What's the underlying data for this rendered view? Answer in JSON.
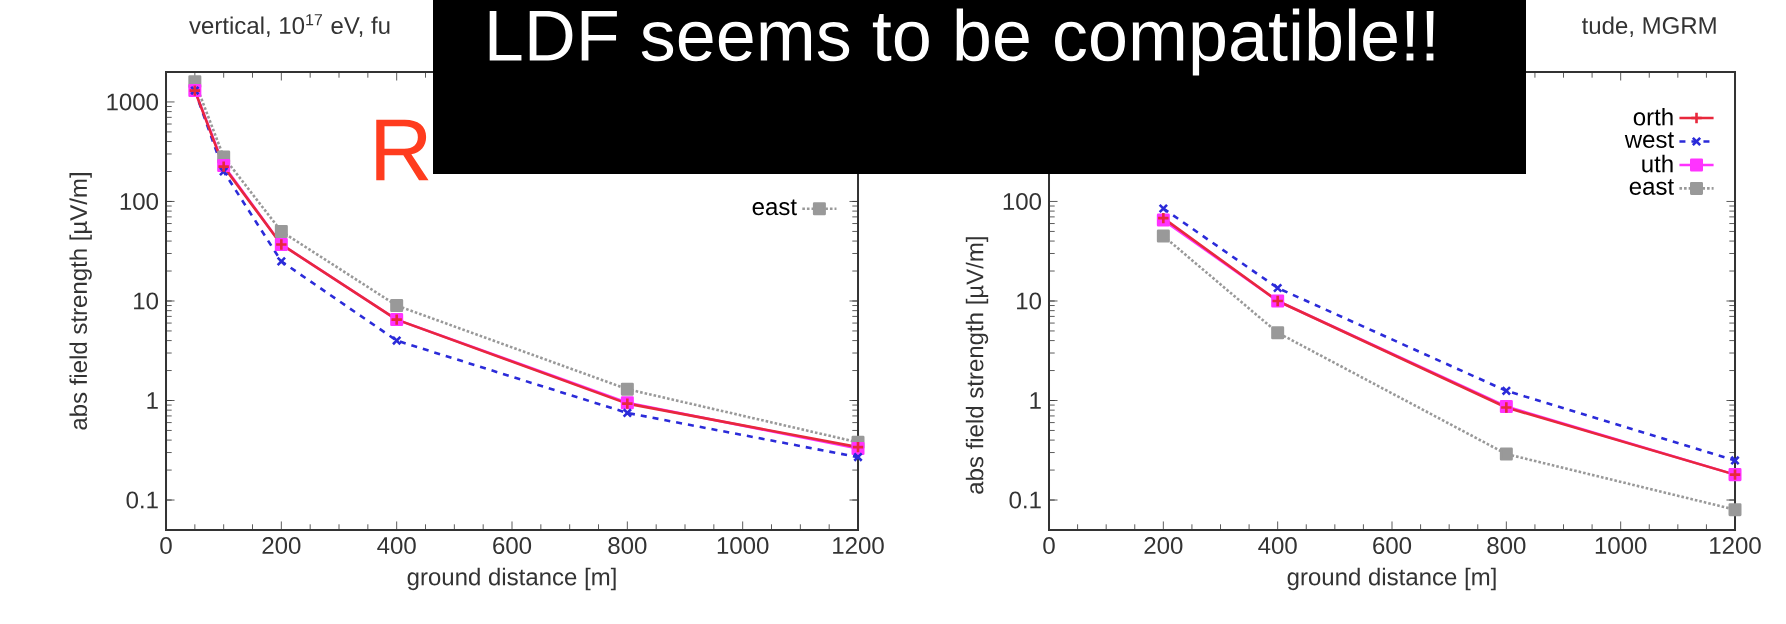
{
  "chart_data": [
    {
      "type": "line",
      "title": "vertical, 10$^{17}$ eV, fu",
      "xlabel": "ground distance [m]",
      "ylabel": "abs field strength [µV/m]",
      "log": "y",
      "legend": "top right",
      "xlim": [
        0,
        1200
      ],
      "xticks": [
        0,
        200,
        400,
        600,
        800,
        1000,
        1200
      ],
      "ylim": [
        0.05,
        2000
      ],
      "yticks": [
        0.1,
        1,
        10,
        100,
        1000
      ],
      "series": [
        {
          "color": "#e8283c",
          "line_style": "solid",
          "marker": "plus",
          "x": [
            50,
            100,
            200,
            400,
            800,
            1200
          ],
          "values": [
            1300,
            224,
            37,
            6.5,
            0.93,
            0.34
          ]
        },
        {
          "color": "#2b2bd9",
          "line_style": "dashed",
          "marker": "cross",
          "x": [
            50,
            100,
            200,
            400,
            800,
            1200
          ],
          "values": [
            1300,
            200,
            25,
            4,
            0.75,
            0.27
          ]
        },
        {
          "color": "#ff33ff",
          "line_style": "solid",
          "marker": "square",
          "x": [
            50,
            100,
            200,
            400,
            800,
            1200
          ],
          "values": [
            1300,
            230,
            37,
            6.5,
            0.95,
            0.33
          ]
        },
        {
          "name": "east",
          "color": "#999999",
          "line_style": "dotted",
          "marker": "square",
          "x": [
            50,
            100,
            200,
            400,
            800,
            1200
          ],
          "values": [
            1600,
            280,
            50,
            9,
            1.3,
            0.38
          ]
        }
      ]
    },
    {
      "type": "line",
      "title": "tude, MGRM",
      "xlabel": "ground distance [m]",
      "ylabel": "abs field strength [µV/m]",
      "log": "y",
      "legend": "top right",
      "xlim": [
        0,
        1200
      ],
      "xticks": [
        0,
        200,
        400,
        600,
        800,
        1000,
        1200
      ],
      "ylim": [
        0.05,
        2000
      ],
      "yticks": [
        0.1,
        1,
        10,
        100
      ],
      "annotations": [
        "LDF seems to be compatible!!",
        "R"
      ],
      "series": [
        {
          "name": "orth",
          "color": "#e8283c",
          "line_style": "solid",
          "marker": "plus",
          "x": [
            200,
            400,
            800,
            1200
          ],
          "values": [
            68,
            10,
            0.85,
            0.18
          ]
        },
        {
          "name": "west",
          "color": "#2b2bd9",
          "line_style": "dashed",
          "marker": "cross",
          "x": [
            200,
            400,
            800,
            1200
          ],
          "values": [
            85,
            13.5,
            1.25,
            0.25
          ]
        },
        {
          "name": "uth",
          "color": "#ff33ff",
          "line_style": "solid",
          "marker": "square",
          "x": [
            200,
            400,
            800,
            1200
          ],
          "values": [
            65,
            10,
            0.87,
            0.18
          ]
        },
        {
          "name": "east",
          "color": "#999999",
          "line_style": "dotted",
          "marker": "square",
          "x": [
            200,
            400,
            800,
            1200
          ],
          "values": [
            45,
            4.8,
            0.29,
            0.08
          ]
        }
      ]
    }
  ]
}
